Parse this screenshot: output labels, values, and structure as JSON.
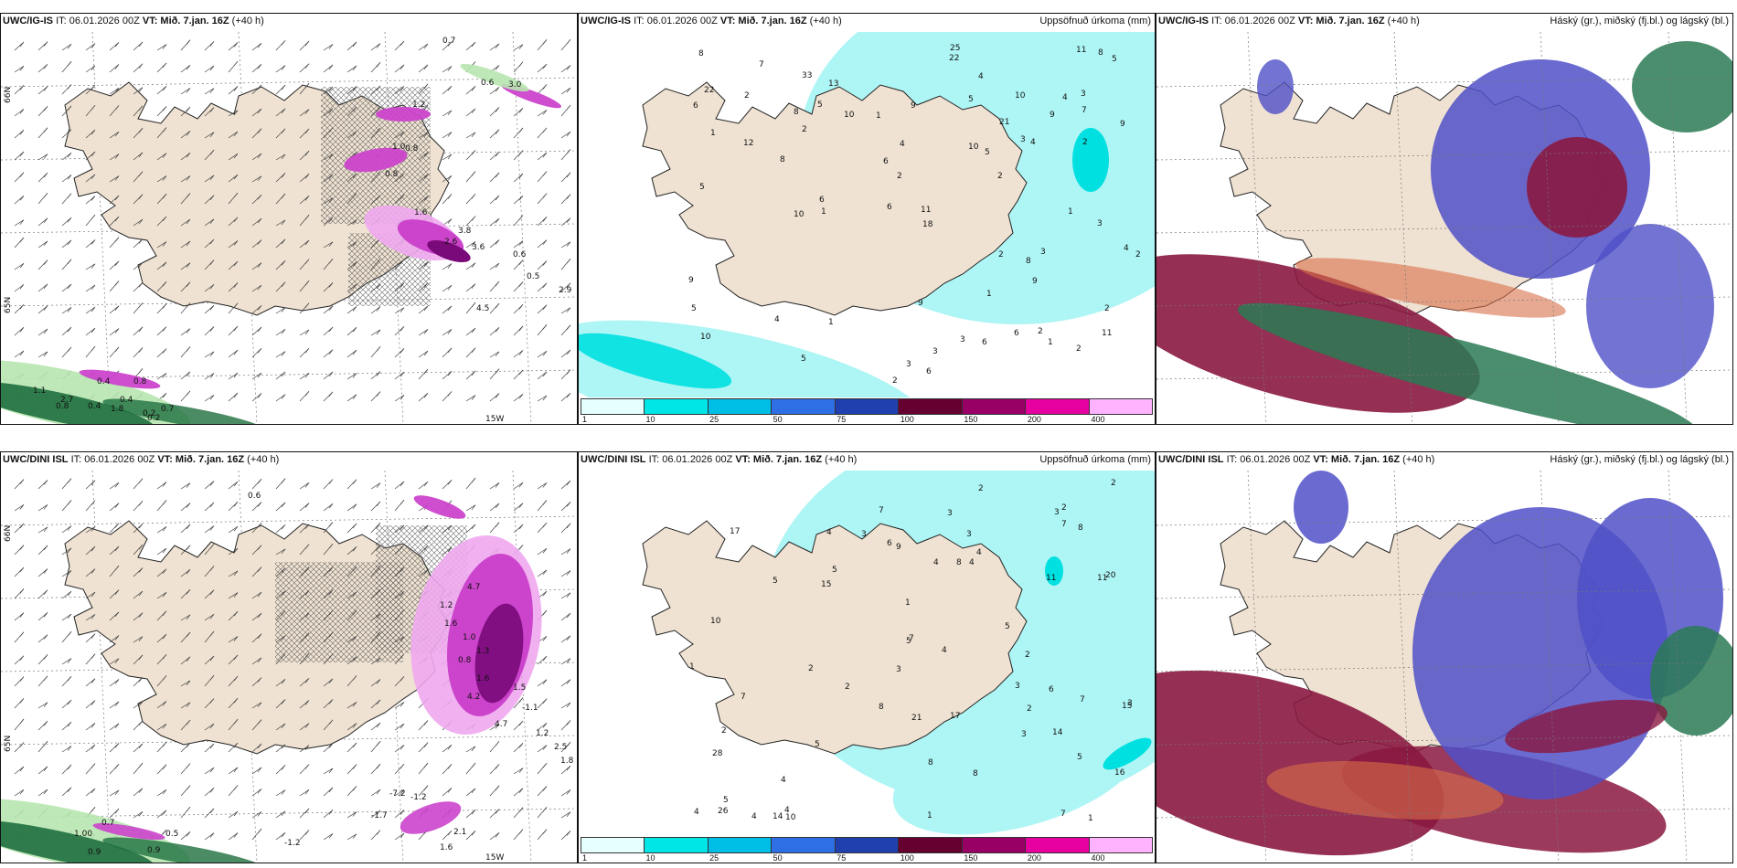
{
  "rows": [
    {
      "model": "UWC/IG-IS",
      "init": "IT: 06.01.2026 00Z",
      "valid_prefix": "VT:",
      "valid": "Mið. 7.jan. 16Z",
      "lead": "(+40 h)",
      "panels": [
        {
          "kind": "wind_precip",
          "right_title": ""
        },
        {
          "kind": "accum",
          "right_title": "Uppsöfnuð úrkoma (mm)"
        },
        {
          "kind": "cloud",
          "right_title": "Háský (gr.), miðský (fj.bl.) og lágský (bl.)"
        }
      ],
      "wind_labels": [
        "0.7",
        "0.6",
        "3.0",
        "1.2",
        "1.0",
        "0.8",
        "0.8",
        "1.6",
        "3.8",
        "2.6",
        "3.6",
        "0.6",
        "0.5",
        "2.9",
        "4.5",
        "0.4",
        "0.8",
        "1.1",
        "2.7",
        "0.4",
        "1.8",
        "0.2",
        "0.7",
        "0.8",
        "0.4",
        "0.2"
      ],
      "accum_labels": [
        "1",
        "2",
        "2",
        "3",
        "4",
        "2",
        "2",
        "1",
        "3",
        "2",
        "4",
        "5",
        "3",
        "4",
        "5",
        "5",
        "6",
        "1",
        "2",
        "3",
        "1",
        "3",
        "2",
        "9",
        "10",
        "8",
        "7",
        "4",
        "7",
        "10",
        "9",
        "6",
        "8",
        "12",
        "22",
        "33",
        "10",
        "5",
        "22",
        "5",
        "4",
        "8",
        "6",
        "2",
        "3",
        "9",
        "6",
        "1",
        "2",
        "3",
        "4",
        "5",
        "6",
        "8",
        "9",
        "13",
        "10",
        "9",
        "6",
        "10",
        "9",
        "8",
        "2",
        "5",
        "6",
        "2",
        "18",
        "25",
        "21",
        "11",
        "11",
        "11",
        "1",
        "1"
      ],
      "axis_labels": [
        "66N",
        "65N",
        "15W"
      ]
    },
    {
      "model": "UWC/DINI ISL",
      "init": "IT: 06.01.2026 00Z",
      "valid_prefix": "VT:",
      "valid": "Mið. 7.jan. 16Z",
      "lead": "(+40 h)",
      "panels": [
        {
          "kind": "wind_precip",
          "right_title": ""
        },
        {
          "kind": "accum",
          "right_title": "Uppsöfnuð úrkoma (mm)"
        },
        {
          "kind": "cloud",
          "right_title": "Háský (gr.), miðský (fj.bl.) og lágský (bl.)"
        }
      ],
      "wind_labels": [
        "0.6",
        "4.7",
        "1.2",
        "1.6",
        "1.0",
        "1.3",
        "0.8",
        "1.6",
        "4.2",
        "1.5",
        "4.7",
        "1.2",
        "2.5",
        "1.8",
        "-1.1",
        "-7.2",
        "-1.2",
        "-1.7",
        "-1.2",
        "1.00",
        "0.9",
        "2.1",
        "1.6",
        "0.7",
        "0.9",
        "0.5"
      ],
      "accum_labels": [
        "1",
        "1",
        "2",
        "1",
        "2",
        "3",
        "2",
        "7",
        "7",
        "2",
        "6",
        "5",
        "3",
        "2",
        "5",
        "3",
        "5",
        "4",
        "15",
        "11",
        "8",
        "4",
        "10",
        "14",
        "28",
        "26",
        "21",
        "17",
        "15",
        "11",
        "4",
        "2",
        "7",
        "5",
        "3",
        "5",
        "7",
        "8",
        "3",
        "3",
        "4",
        "3",
        "8",
        "4",
        "2",
        "4",
        "3",
        "5",
        "4",
        "8",
        "2",
        "5",
        "6",
        "7",
        "20",
        "16",
        "17",
        "14",
        "4",
        "8",
        "9",
        "10",
        "7",
        "4",
        "1"
      ],
      "axis_labels": [
        "66N",
        "65N",
        "15W"
      ]
    }
  ],
  "colorbar": {
    "ticks": [
      "1",
      "10",
      "25",
      "50",
      "75",
      "100",
      "150",
      "200",
      "400"
    ],
    "colors": [
      "#e6ffff",
      "#00e6e6",
      "#00bfe6",
      "#2f6fe6",
      "#2040b0",
      "#660030",
      "#990066",
      "#e600a0",
      "#ffb3ff"
    ]
  },
  "palette": {
    "land": "#efe2d2",
    "sea_light": "#aef5f5",
    "sea_mid": "#00e0e0",
    "sea_dark": "#00b8d8",
    "pink_light": "#f0a8f0",
    "pink_mid": "#cc44cc",
    "pink_dark": "#7a0a7a",
    "green_light": "#b8e6b0",
    "green_dark": "#1f6f3f",
    "cloud_high": "#2a7a55",
    "cloud_mid": "#5050c8",
    "cloud_low": "#8a1840",
    "cloud_orange": "#d8704a"
  }
}
